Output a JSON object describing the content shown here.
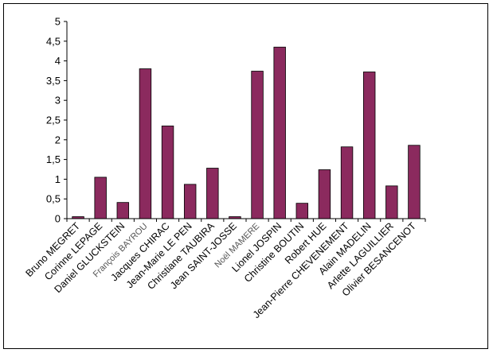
{
  "chart_data": {
    "type": "bar",
    "title": "",
    "xlabel": "",
    "ylabel": "",
    "ylim": [
      0,
      5
    ],
    "yticks": [
      "0",
      "0,5",
      "1",
      "1,5",
      "2",
      "2,5",
      "3",
      "3,5",
      "4",
      "4,5",
      "5"
    ],
    "grid": false,
    "legend": "none",
    "bar_color": "#8b2a5e",
    "categories": [
      "Bruno MEGRET",
      "Corinne LEPAGE",
      "Daniel GLUCKSTEIN",
      "François BAYROU",
      "Jacques CHIRAC",
      "Jean-Marie LE PEN",
      "Christiane TAUBIRA",
      "Jean SAINT-JOSSE",
      "Noël MAMERE",
      "Lionel JOSPIN",
      "Christine BOUTIN",
      "Robert HUE",
      "Jean-Pierre CHEVENEMENT",
      "Alain MADELIN",
      "Arlette LAGUILLIER",
      "Olivier BESANCENOT"
    ],
    "values": [
      0.05,
      1.05,
      0.41,
      3.8,
      2.35,
      0.87,
      1.28,
      0.05,
      3.74,
      4.35,
      0.39,
      1.24,
      1.82,
      3.72,
      0.83,
      1.86
    ]
  }
}
